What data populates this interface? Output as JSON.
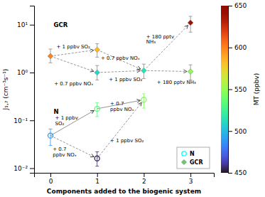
{
  "chart_data": {
    "type": "scatter",
    "x_label": "Components added to the biogenic system",
    "y_label": "J₁,₇ (cm⁻³s⁻¹)",
    "log": "y",
    "xlim": [
      -0.35,
      3.5
    ],
    "xticks": [
      0,
      1,
      2,
      3
    ],
    "ylim": [
      0.008,
      25.0
    ],
    "yticks": [
      {
        "value": 0.01,
        "label": "10⁻²"
      },
      {
        "value": 0.1,
        "label": "10⁻¹"
      },
      {
        "value": 1,
        "label": "10⁰"
      },
      {
        "value": 10,
        "label": "10¹"
      }
    ],
    "grid": false,
    "legend": "lower-right",
    "series": [
      {
        "name": "N",
        "marker": "circle",
        "color": "#00ffff",
        "x": [
          0,
          1,
          1,
          2
        ],
        "values": [
          0.048,
          0.175,
          0.016,
          0.27
        ],
        "error_minus": [
          0.018,
          0.055,
          0.005,
          0.09
        ],
        "error_plus": [
          0.018,
          0.06,
          0.006,
          0.09
        ],
        "color_values": [
          488,
          533,
          455,
          545
        ]
      },
      {
        "name": "GCR",
        "marker": "diamond",
        "color": "#66cc66",
        "x": [
          0,
          1,
          1,
          2,
          3,
          3
        ],
        "values": [
          2.2,
          3.0,
          1.0,
          1.1,
          11.0,
          1.05
        ],
        "error_minus": [
          0.6,
          0.9,
          0.3,
          0.35,
          4.0,
          0.35
        ],
        "error_plus": [
          0.9,
          1.0,
          0.4,
          0.4,
          4.0,
          0.4
        ],
        "color_values": [
          600,
          583,
          510,
          515,
          638,
          548
        ]
      }
    ],
    "arrows": [
      {
        "x": [
          0,
          1
        ],
        "y": [
          2.2,
          3.0
        ],
        "line_style": "dashed"
      },
      {
        "x": [
          0,
          1
        ],
        "y": [
          2.2,
          1.0
        ],
        "line_style": "dashed"
      },
      {
        "x": [
          1,
          2
        ],
        "y": [
          3.0,
          1.1
        ],
        "line_style": "dashed"
      },
      {
        "x": [
          1,
          2
        ],
        "y": [
          1.0,
          1.1
        ],
        "line_style": "dashed"
      },
      {
        "x": [
          2,
          3
        ],
        "y": [
          1.1,
          11.0
        ],
        "line_style": "dashed"
      },
      {
        "x": [
          2,
          3
        ],
        "y": [
          1.1,
          1.05
        ],
        "line_style": "dashed"
      },
      {
        "x": [
          0,
          1
        ],
        "y": [
          0.048,
          0.175
        ],
        "line_style": "solid"
      },
      {
        "x": [
          1,
          2
        ],
        "y": [
          0.175,
          0.27
        ],
        "line_style": "solid"
      },
      {
        "x": [
          0,
          1
        ],
        "y": [
          0.048,
          0.016
        ],
        "line_style": "dashed"
      },
      {
        "x": [
          1,
          2
        ],
        "y": [
          0.016,
          0.27
        ],
        "line_style": "dashed"
      }
    ],
    "annotations": [
      {
        "text": "+ 1 ppbv SO₂",
        "x": 0.13,
        "y": 3.5
      },
      {
        "text": "+ 0.7 ppbv NOₓ",
        "x": 0.08,
        "y": 0.58
      },
      {
        "text": "+ 0.7 ppbv NOₓ",
        "x": 1.08,
        "y": 2.0
      },
      {
        "text": "+ 1 ppbv SO₂",
        "x": 1.25,
        "y": 0.72
      },
      {
        "text": "+ 180 pptv\nNH₃",
        "x": 2.05,
        "y": 5.0
      },
      {
        "text": "+ 180 pptv NH₃",
        "x": 2.28,
        "y": 0.62
      },
      {
        "text": "+ 1 ppbv\nSO₂",
        "x": 0.1,
        "y": 0.1
      },
      {
        "text": "+ 0.7\nppbv NOₓ",
        "x": 1.28,
        "y": 0.195
      },
      {
        "text": "+ 0.7\nppbv NOₓ",
        "x": 0.05,
        "y": 0.022
      },
      {
        "text": "+ 1 ppbv SO₂",
        "x": 1.28,
        "y": 0.038
      }
    ],
    "series_labels": [
      {
        "text": "GCR",
        "x": 0.07,
        "y": 9.0
      },
      {
        "text": "N",
        "x": 0.07,
        "y": 0.135
      }
    ],
    "colorbar_label": "MT (ppbv)",
    "colorbar_lim": [
      450,
      650
    ],
    "colorbar_ticks": [
      450,
      500,
      550,
      600,
      650
    ]
  }
}
